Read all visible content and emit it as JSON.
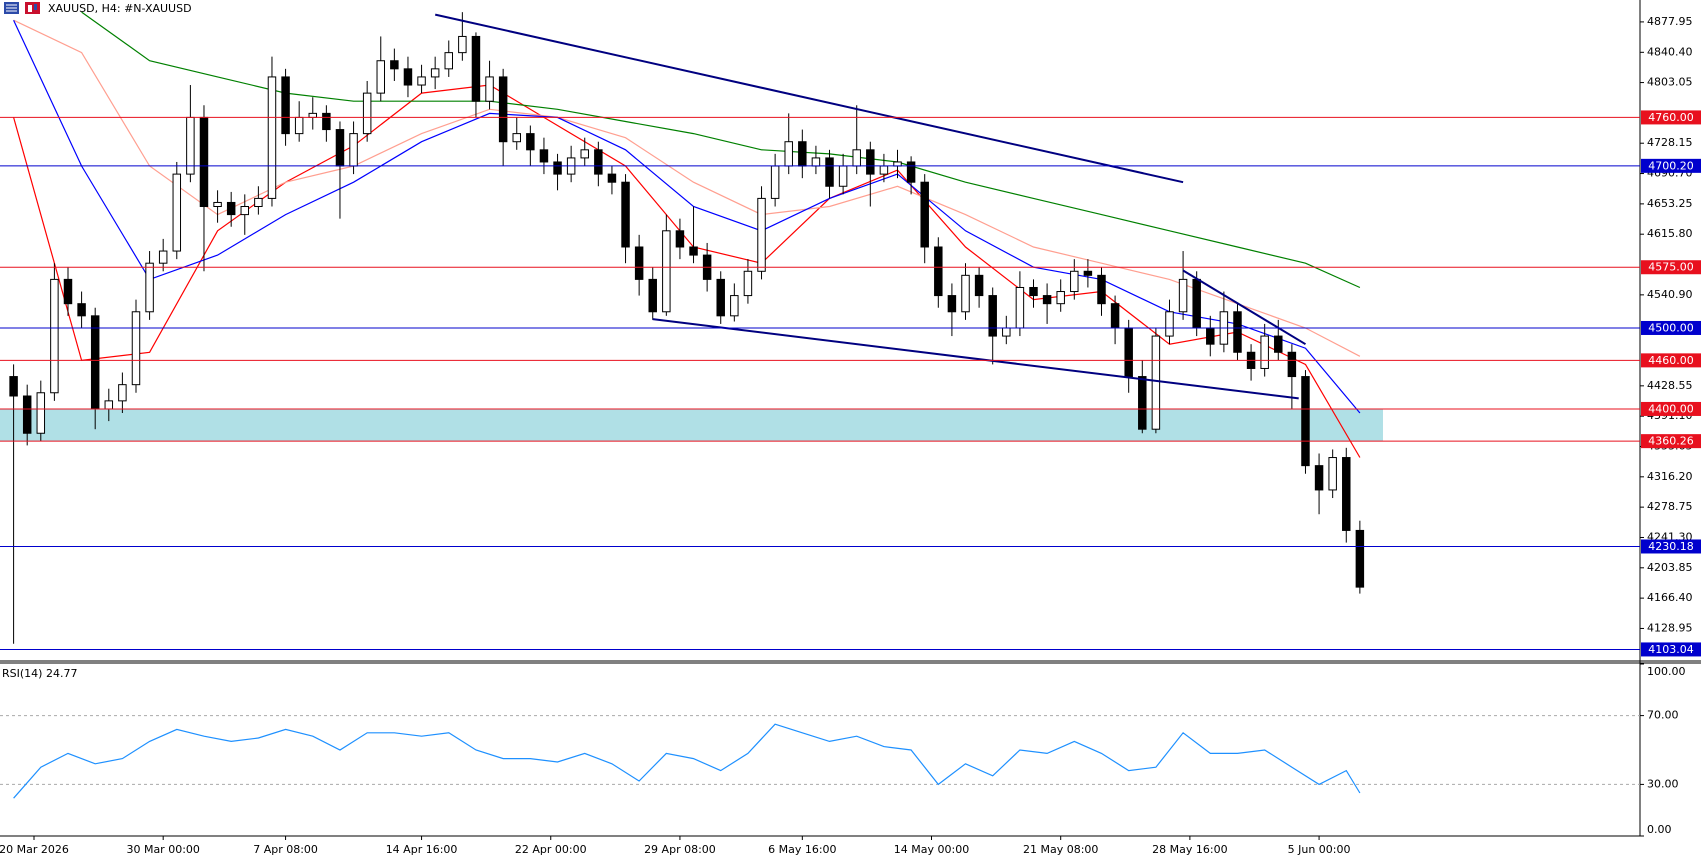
{
  "chart_data": {
    "type": "candlestick",
    "title": "XAUUSD, H4:  #N-XAUUSD",
    "xlim": [
      -1,
      119.6
    ],
    "xticks": [
      {
        "value": 1.5,
        "label": "20 Mar 2026"
      },
      {
        "value": 11,
        "label": "30 Mar 00:00"
      },
      {
        "value": 20,
        "label": "7 Apr 08:00"
      },
      {
        "value": 30,
        "label": "14 Apr 16:00"
      },
      {
        "value": 39.5,
        "label": "22 Apr 00:00"
      },
      {
        "value": 49,
        "label": "29 Apr 08:00"
      },
      {
        "value": 58,
        "label": "6 May 16:00"
      },
      {
        "value": 67.5,
        "label": "14 May 00:00"
      },
      {
        "value": 77,
        "label": "21 May 08:00"
      },
      {
        "value": 86.5,
        "label": "28 May 16:00"
      },
      {
        "value": 96,
        "label": "5 Jun 00:00"
      }
    ],
    "ylim": [
      4090,
      4905
    ],
    "yticks": [
      4877.95,
      {
        "value": 4840.4,
        "label": "4840.40"
      },
      4803.05,
      4728.15,
      {
        "value": 4690.7,
        "label": "4690.70"
      },
      4653.25,
      {
        "value": 4615.8,
        "label": "4615.80"
      },
      {
        "value": 4540.9,
        "label": "4540.90"
      },
      4428.55,
      {
        "value": 4391.1,
        "label": "4391.10"
      },
      4353.65,
      {
        "value": 4316.2,
        "label": "4316.20"
      },
      4278.75,
      {
        "value": 4241.3,
        "label": "4241.30"
      },
      4203.85,
      {
        "value": 4166.4,
        "label": "4166.40"
      },
      4128.95
    ],
    "candles": [
      [
        4440,
        4455,
        4110,
        4416
      ],
      [
        4416,
        4430,
        4355,
        4370
      ],
      [
        4370,
        4435,
        4360,
        4420
      ],
      [
        4420,
        4580,
        4410,
        4560
      ],
      [
        4560,
        4575,
        4515,
        4530
      ],
      [
        4530,
        4545,
        4500,
        4515
      ],
      [
        4515,
        4525,
        4375,
        4400
      ],
      [
        4400,
        4425,
        4385,
        4410
      ],
      [
        4410,
        4445,
        4395,
        4430
      ],
      [
        4430,
        4535,
        4420,
        4520
      ],
      [
        4520,
        4595,
        4510,
        4580
      ],
      [
        4580,
        4610,
        4570,
        4595
      ],
      [
        4595,
        4705,
        4585,
        4690
      ],
      [
        4690,
        4800,
        4680,
        4760
      ],
      [
        4760,
        4775,
        4570,
        4650
      ],
      [
        4650,
        4670,
        4630,
        4655
      ],
      [
        4655,
        4668,
        4625,
        4640
      ],
      [
        4640,
        4665,
        4615,
        4650
      ],
      [
        4650,
        4675,
        4640,
        4660
      ],
      [
        4660,
        4835,
        4650,
        4810
      ],
      [
        4810,
        4820,
        4725,
        4740
      ],
      [
        4740,
        4780,
        4730,
        4760
      ],
      [
        4760,
        4785,
        4745,
        4765
      ],
      [
        4765,
        4775,
        4730,
        4745
      ],
      [
        4745,
        4755,
        4635,
        4700
      ],
      [
        4700,
        4755,
        4690,
        4740
      ],
      [
        4740,
        4805,
        4730,
        4790
      ],
      [
        4790,
        4860,
        4780,
        4830
      ],
      [
        4830,
        4845,
        4805,
        4820
      ],
      [
        4820,
        4835,
        4785,
        4800
      ],
      [
        4800,
        4825,
        4790,
        4810
      ],
      [
        4810,
        4835,
        4795,
        4820
      ],
      [
        4820,
        4855,
        4810,
        4840
      ],
      [
        4840,
        4890,
        4830,
        4860
      ],
      [
        4860,
        4865,
        4760,
        4780
      ],
      [
        4780,
        4830,
        4770,
        4810
      ],
      [
        4810,
        4820,
        4700,
        4730
      ],
      [
        4730,
        4760,
        4720,
        4740
      ],
      [
        4740,
        4750,
        4700,
        4720
      ],
      [
        4720,
        4735,
        4690,
        4705
      ],
      [
        4705,
        4715,
        4670,
        4690
      ],
      [
        4690,
        4725,
        4680,
        4710
      ],
      [
        4710,
        4735,
        4700,
        4720
      ],
      [
        4720,
        4730,
        4675,
        4690
      ],
      [
        4690,
        4700,
        4665,
        4680
      ],
      [
        4680,
        4690,
        4580,
        4600
      ],
      [
        4600,
        4615,
        4540,
        4560
      ],
      [
        4560,
        4575,
        4510,
        4520
      ],
      [
        4520,
        4640,
        4515,
        4620
      ],
      [
        4620,
        4635,
        4585,
        4600
      ],
      [
        4600,
        4650,
        4580,
        4590
      ],
      [
        4590,
        4605,
        4545,
        4560
      ],
      [
        4560,
        4570,
        4505,
        4515
      ],
      [
        4515,
        4555,
        4508,
        4540
      ],
      [
        4540,
        4585,
        4530,
        4570
      ],
      [
        4570,
        4675,
        4560,
        4660
      ],
      [
        4660,
        4715,
        4650,
        4700
      ],
      [
        4700,
        4765,
        4690,
        4730
      ],
      [
        4730,
        4745,
        4685,
        4700
      ],
      [
        4700,
        4725,
        4690,
        4710
      ],
      [
        4710,
        4720,
        4660,
        4675
      ],
      [
        4675,
        4715,
        4665,
        4700
      ],
      [
        4700,
        4775,
        4690,
        4720
      ],
      [
        4720,
        4730,
        4650,
        4690
      ],
      [
        4690,
        4715,
        4680,
        4700
      ],
      [
        4700,
        4720,
        4685,
        4705
      ],
      [
        4705,
        4712,
        4665,
        4680
      ],
      [
        4680,
        4690,
        4580,
        4600
      ],
      [
        4600,
        4612,
        4525,
        4540
      ],
      [
        4540,
        4555,
        4490,
        4520
      ],
      [
        4520,
        4580,
        4510,
        4565
      ],
      [
        4565,
        4575,
        4525,
        4540
      ],
      [
        4540,
        4550,
        4455,
        4490
      ],
      [
        4490,
        4515,
        4480,
        4500
      ],
      [
        4500,
        4570,
        4490,
        4550
      ],
      [
        4550,
        4560,
        4525,
        4540
      ],
      [
        4540,
        4555,
        4505,
        4530
      ],
      [
        4530,
        4560,
        4520,
        4545
      ],
      [
        4545,
        4585,
        4535,
        4570
      ],
      [
        4570,
        4585,
        4550,
        4565
      ],
      [
        4565,
        4575,
        4515,
        4530
      ],
      [
        4530,
        4540,
        4480,
        4500
      ],
      [
        4500,
        4510,
        4420,
        4440
      ],
      [
        4440,
        4460,
        4370,
        4375
      ],
      [
        4375,
        4500,
        4370,
        4490
      ],
      [
        4490,
        4535,
        4480,
        4520
      ],
      [
        4520,
        4595,
        4510,
        4560
      ],
      [
        4560,
        4570,
        4490,
        4500
      ],
      [
        4500,
        4515,
        4465,
        4480
      ],
      [
        4480,
        4545,
        4470,
        4520
      ],
      [
        4520,
        4530,
        4460,
        4470
      ],
      [
        4470,
        4480,
        4435,
        4450
      ],
      [
        4450,
        4505,
        4440,
        4490
      ],
      [
        4490,
        4510,
        4460,
        4470
      ],
      [
        4470,
        4480,
        4400,
        4440
      ],
      [
        4440,
        4448,
        4320,
        4330
      ],
      [
        4330,
        4345,
        4270,
        4300
      ],
      [
        4300,
        4350,
        4290,
        4340
      ],
      [
        4340,
        4352,
        4235,
        4250
      ],
      [
        4250,
        4262,
        4172,
        4180
      ]
    ],
    "ma_x": [
      0,
      5,
      10,
      15,
      20,
      25,
      30,
      35,
      40,
      45,
      50,
      55,
      60,
      65,
      70,
      75,
      80,
      85,
      90,
      95,
      99
    ],
    "mas": [
      {
        "color": "#ff0000",
        "values": [
          4760,
          4460,
          4470,
          4620,
          4680,
          4725,
          4790,
          4800,
          4750,
          4700,
          4600,
          4580,
          4660,
          4695,
          4600,
          4535,
          4545,
          4480,
          4495,
          4455,
          4340
        ]
      },
      {
        "color": "#ff9f90",
        "values": [
          4880,
          4840,
          4700,
          4640,
          4680,
          4700,
          4740,
          4770,
          4760,
          4735,
          4680,
          4640,
          4650,
          4675,
          4640,
          4600,
          4580,
          4560,
          4530,
          4500,
          4465
        ]
      },
      {
        "color": "#0000ff",
        "values": [
          4880,
          4700,
          4560,
          4590,
          4640,
          4680,
          4730,
          4765,
          4760,
          4720,
          4650,
          4620,
          4660,
          4690,
          4620,
          4575,
          4560,
          4520,
          4505,
          4475,
          4395
        ]
      },
      {
        "color": "#008000",
        "values": [
          null,
          4890,
          4830,
          4810,
          4790,
          4780,
          4780,
          4780,
          4770,
          4755,
          4740,
          4720,
          4715,
          4705,
          4680,
          4660,
          4640,
          4620,
          4600,
          4580,
          4550
        ]
      }
    ],
    "trendlines": [
      {
        "color": "#000080",
        "x": [
          31,
          86
        ],
        "y": [
          4887,
          4680
        ]
      },
      {
        "color": "#000080",
        "x": [
          47,
          94.5
        ],
        "y": [
          4511,
          4413
        ]
      },
      {
        "color": "#000080",
        "x": [
          86,
          95
        ],
        "y": [
          4571,
          4480
        ]
      }
    ],
    "levels": [
      {
        "price": {
          "value": 4760,
          "label": "4760.00"
        },
        "color": "#e8101e"
      },
      {
        "price": {
          "value": 4700.2,
          "label": "4700.20"
        },
        "color": "#0000cd"
      },
      {
        "price": {
          "value": 4575,
          "label": "4575.00"
        },
        "color": "#e8101e"
      },
      {
        "price": {
          "value": 4500,
          "label": "4500.00"
        },
        "color": "#0000cd"
      },
      {
        "price": {
          "value": 4460,
          "label": "4460.00"
        },
        "color": "#e8101e"
      },
      {
        "price": {
          "value": 4400,
          "label": "4400.00"
        },
        "color": "#e8101e"
      },
      {
        "price": {
          "value": 4360.26,
          "label": "4360.26"
        },
        "color": "#e8101e"
      },
      {
        "price": {
          "value": 4230.18,
          "label": "4230.18"
        },
        "color": "#0000cd"
      },
      {
        "price": {
          "value": 4103.04,
          "label": "4103.04"
        },
        "color": "#0000cd"
      }
    ],
    "zone": {
      "from": 4360.26,
      "to": 4400,
      "x_end": 100.7,
      "color": "#b0e0e6"
    },
    "rsi": {
      "label": "RSI(14) 24.77",
      "color": "#1e90ff",
      "ylim": [
        0,
        100
      ],
      "yticks": [
        {
          "value": 100,
          "label": "100.00"
        },
        {
          "value": 70,
          "label": "70.00"
        },
        {
          "value": 30,
          "label": "30.00"
        },
        {
          "value": 0,
          "label": "0.00"
        }
      ],
      "x": [
        0,
        2,
        4,
        6,
        8,
        10,
        12,
        14,
        16,
        18,
        20,
        22,
        24,
        26,
        28,
        30,
        32,
        34,
        36,
        38,
        40,
        42,
        44,
        46,
        48,
        50,
        52,
        54,
        56,
        58,
        60,
        62,
        64,
        66,
        68,
        70,
        72,
        74,
        76,
        78,
        80,
        82,
        84,
        86,
        88,
        90,
        92,
        94,
        96,
        98,
        99
      ],
      "values": [
        22,
        40,
        48,
        42,
        45,
        55,
        62,
        58,
        55,
        57,
        62,
        58,
        50,
        60,
        60,
        58,
        60,
        50,
        45,
        45,
        43,
        48,
        42,
        32,
        48,
        45,
        38,
        48,
        65,
        60,
        55,
        58,
        52,
        50,
        30,
        42,
        35,
        50,
        48,
        55,
        48,
        38,
        40,
        60,
        48,
        48,
        50,
        40,
        30,
        38,
        25
      ]
    }
  }
}
